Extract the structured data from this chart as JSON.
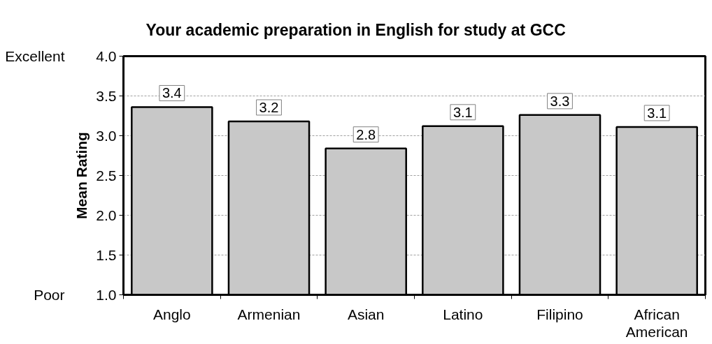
{
  "chart_data": {
    "type": "bar",
    "title": "Your academic preparation in English for study at GCC",
    "ylabel": "Mean Rating",
    "categories": [
      "Anglo",
      "Armenian",
      "Asian",
      "Latino",
      "Filipino",
      "African American"
    ],
    "values": [
      3.36,
      3.18,
      2.84,
      3.12,
      3.26,
      3.11
    ],
    "value_labels": [
      "3.4",
      "3.2",
      "2.8",
      "3.1",
      "3.3",
      "3.1"
    ],
    "color": "#c8c8c8",
    "ylim": [
      1.0,
      4.0
    ],
    "yticks": [
      {
        "value": 1.0,
        "label": "1.0"
      },
      {
        "value": 1.5,
        "label": "1.5"
      },
      {
        "value": 2.0,
        "label": "2.0"
      },
      {
        "value": 2.5,
        "label": "2.5"
      },
      {
        "value": 3.0,
        "label": "3.0"
      },
      {
        "value": 3.5,
        "label": "3.5"
      },
      {
        "value": 4.0,
        "label": "4.0"
      }
    ],
    "grid": "y",
    "annotations": [
      "Excellent",
      "Poor"
    ]
  }
}
